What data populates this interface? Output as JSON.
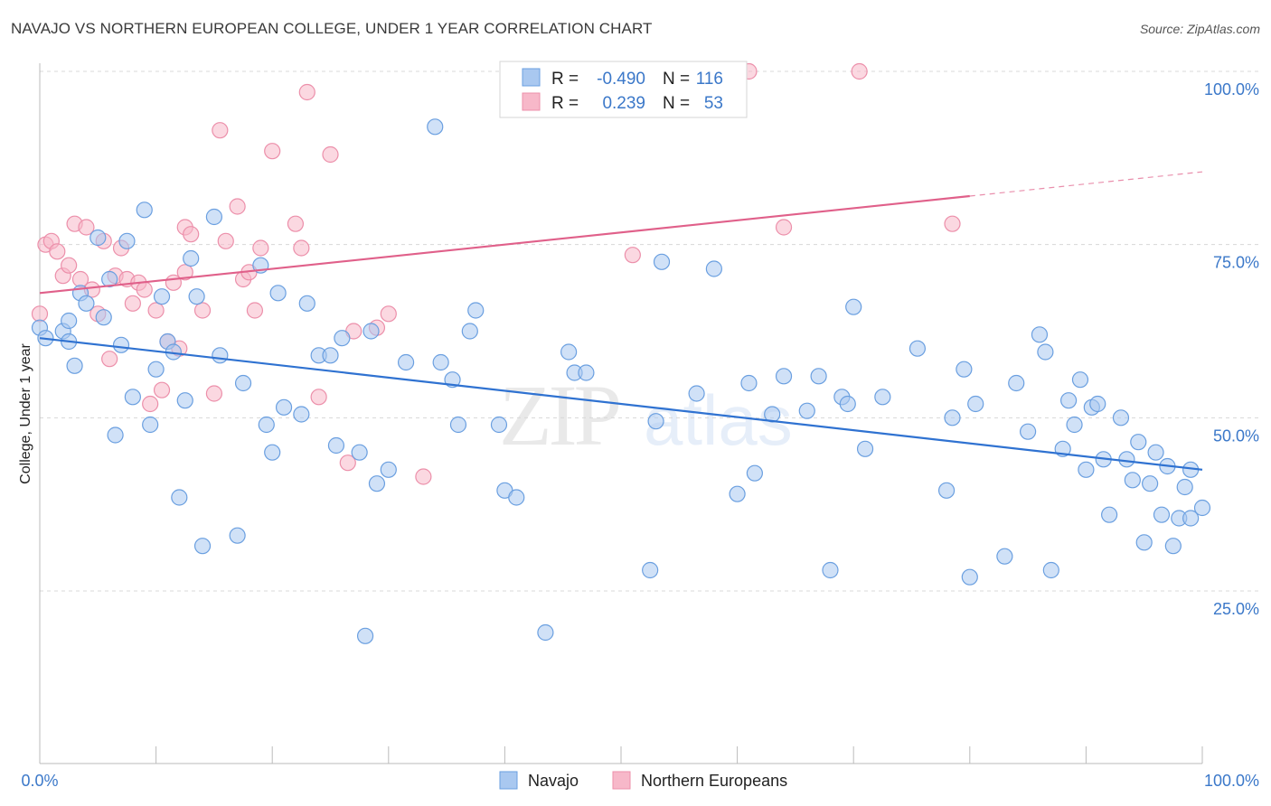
{
  "title": "NAVAJO VS NORTHERN EUROPEAN COLLEGE, UNDER 1 YEAR CORRELATION CHART",
  "source": "Source: ZipAtlas.com",
  "watermark": "ZIPatlas",
  "colors": {
    "navajo_fill": "#a9c8f0",
    "navajo_stroke": "#6a9fe0",
    "navajo_line": "#2f72d1",
    "north_fill": "#f7b8c9",
    "north_stroke": "#ec8faa",
    "north_line": "#e0608a",
    "tick": "#3b78c9",
    "grid": "#d8d8d8"
  },
  "legend": {
    "r_label": "R =",
    "n_label": "N =",
    "navajo_r": "-0.490",
    "navajo_n": "116",
    "north_r": "0.239",
    "north_n": "53"
  },
  "chart_data": {
    "type": "scatter",
    "title": "NAVAJO VS NORTHERN EUROPEAN COLLEGE, UNDER 1 YEAR CORRELATION CHART",
    "xlabel": "",
    "ylabel": "College, Under 1 year",
    "xlim": [
      0,
      100
    ],
    "ylim": [
      0,
      105
    ],
    "x_ticks": [
      "0.0%",
      "100.0%"
    ],
    "y_ticks": [
      "25.0%",
      "50.0%",
      "75.0%",
      "100.0%"
    ],
    "y_tick_values": [
      25,
      50,
      75,
      100
    ],
    "grid": "horizontal dashed",
    "legend_position": "top-center",
    "series": [
      {
        "name": "Navajo",
        "trend": {
          "x0": 0,
          "y0": 61.5,
          "x1": 100,
          "y1": 42.5
        },
        "points": [
          [
            0,
            63
          ],
          [
            0.5,
            61.5
          ],
          [
            2,
            62.5
          ],
          [
            2.5,
            64
          ],
          [
            2.5,
            61
          ],
          [
            3,
            57.5
          ],
          [
            3.5,
            68
          ],
          [
            4,
            66.5
          ],
          [
            5,
            76
          ],
          [
            5.5,
            64.5
          ],
          [
            6,
            70
          ],
          [
            6.5,
            47.5
          ],
          [
            7,
            60.5
          ],
          [
            7.5,
            75.5
          ],
          [
            8,
            53
          ],
          [
            9,
            80
          ],
          [
            9.5,
            49
          ],
          [
            10,
            57
          ],
          [
            10.5,
            67.5
          ],
          [
            11,
            61
          ],
          [
            11.5,
            59.5
          ],
          [
            12,
            38.5
          ],
          [
            12.5,
            52.5
          ],
          [
            13,
            73
          ],
          [
            13.5,
            67.5
          ],
          [
            14,
            31.5
          ],
          [
            15,
            79
          ],
          [
            15.5,
            59
          ],
          [
            17,
            33
          ],
          [
            17.5,
            55
          ],
          [
            19,
            72
          ],
          [
            19.5,
            49
          ],
          [
            20,
            45
          ],
          [
            20.5,
            68
          ],
          [
            21,
            51.5
          ],
          [
            22.5,
            50.5
          ],
          [
            23,
            66.5
          ],
          [
            24,
            59
          ],
          [
            25,
            59
          ],
          [
            25.5,
            46
          ],
          [
            26,
            61.5
          ],
          [
            27.5,
            45
          ],
          [
            28,
            18.5
          ],
          [
            28.5,
            62.5
          ],
          [
            29,
            40.5
          ],
          [
            30,
            42.5
          ],
          [
            31.5,
            58
          ],
          [
            34,
            92
          ],
          [
            34.5,
            58
          ],
          [
            35.5,
            55.5
          ],
          [
            36,
            49
          ],
          [
            37,
            62.5
          ],
          [
            37.5,
            65.5
          ],
          [
            39.5,
            49
          ],
          [
            40,
            39.5
          ],
          [
            41,
            38.5
          ],
          [
            43.5,
            19
          ],
          [
            45.5,
            59.5
          ],
          [
            46,
            56.5
          ],
          [
            47,
            56.5
          ],
          [
            52.5,
            28
          ],
          [
            53,
            49.5
          ],
          [
            53.5,
            72.5
          ],
          [
            56.5,
            53.5
          ],
          [
            58,
            71.5
          ],
          [
            60,
            39
          ],
          [
            61,
            55
          ],
          [
            61.5,
            42
          ],
          [
            63,
            50.5
          ],
          [
            64,
            56
          ],
          [
            66,
            51
          ],
          [
            67,
            56
          ],
          [
            68,
            28
          ],
          [
            69,
            53
          ],
          [
            69.5,
            52
          ],
          [
            70,
            66
          ],
          [
            71,
            45.5
          ],
          [
            72.5,
            53
          ],
          [
            75.5,
            60
          ],
          [
            78,
            39.5
          ],
          [
            78.5,
            50
          ],
          [
            79.5,
            57
          ],
          [
            80,
            27
          ],
          [
            80.5,
            52
          ],
          [
            83,
            30
          ],
          [
            84,
            55
          ],
          [
            85,
            48
          ],
          [
            86,
            62
          ],
          [
            86.5,
            59.5
          ],
          [
            87,
            28
          ],
          [
            88,
            45.5
          ],
          [
            88.5,
            52.5
          ],
          [
            89,
            49
          ],
          [
            89.5,
            55.5
          ],
          [
            90,
            42.5
          ],
          [
            90.5,
            51.5
          ],
          [
            91,
            52
          ],
          [
            91.5,
            44
          ],
          [
            92,
            36
          ],
          [
            93,
            50
          ],
          [
            93.5,
            44
          ],
          [
            94,
            41
          ],
          [
            94.5,
            46.5
          ],
          [
            95,
            32
          ],
          [
            95.5,
            40.5
          ],
          [
            96,
            45
          ],
          [
            96.5,
            36
          ],
          [
            97,
            43
          ],
          [
            97.5,
            31.5
          ],
          [
            98,
            35.5
          ],
          [
            98.5,
            40
          ],
          [
            99,
            42.5
          ],
          [
            99,
            35.5
          ],
          [
            100,
            37
          ]
        ]
      },
      {
        "name": "Northern Europeans",
        "trend": {
          "x0": 0,
          "y0": 68,
          "x1": 80,
          "y1": 82,
          "x_dash_end": 100,
          "y_dash_end": 85.5
        },
        "points": [
          [
            0,
            65
          ],
          [
            0.5,
            75
          ],
          [
            1,
            75.5
          ],
          [
            1.5,
            74
          ],
          [
            2,
            70.5
          ],
          [
            2.5,
            72
          ],
          [
            3,
            78
          ],
          [
            3.5,
            70
          ],
          [
            4,
            77.5
          ],
          [
            4.5,
            68.5
          ],
          [
            5,
            65
          ],
          [
            5.5,
            75.5
          ],
          [
            6,
            58.5
          ],
          [
            6.5,
            70.5
          ],
          [
            7,
            74.5
          ],
          [
            7.5,
            70
          ],
          [
            8,
            66.5
          ],
          [
            8.5,
            69.5
          ],
          [
            9,
            68.5
          ],
          [
            9.5,
            52
          ],
          [
            10,
            65.5
          ],
          [
            10.5,
            54
          ],
          [
            11,
            61
          ],
          [
            11.5,
            69.5
          ],
          [
            12,
            60
          ],
          [
            12.5,
            77.5
          ],
          [
            12.5,
            71
          ],
          [
            13,
            76.5
          ],
          [
            14,
            65.5
          ],
          [
            15,
            53.5
          ],
          [
            15.5,
            91.5
          ],
          [
            16,
            75.5
          ],
          [
            17,
            80.5
          ],
          [
            17.5,
            70
          ],
          [
            18,
            71
          ],
          [
            18.5,
            65.5
          ],
          [
            19,
            74.5
          ],
          [
            20,
            88.5
          ],
          [
            22,
            78
          ],
          [
            22.5,
            74.5
          ],
          [
            23,
            97
          ],
          [
            24,
            53
          ],
          [
            25,
            88
          ],
          [
            26.5,
            43.5
          ],
          [
            27,
            62.5
          ],
          [
            29,
            63
          ],
          [
            30,
            65
          ],
          [
            33,
            41.5
          ],
          [
            51,
            73.5
          ],
          [
            61,
            100
          ],
          [
            64,
            77.5
          ],
          [
            70.5,
            100
          ],
          [
            78.5,
            78
          ]
        ]
      }
    ]
  },
  "bottom_legend": {
    "navajo": "Navajo",
    "north": "Northern Europeans"
  }
}
